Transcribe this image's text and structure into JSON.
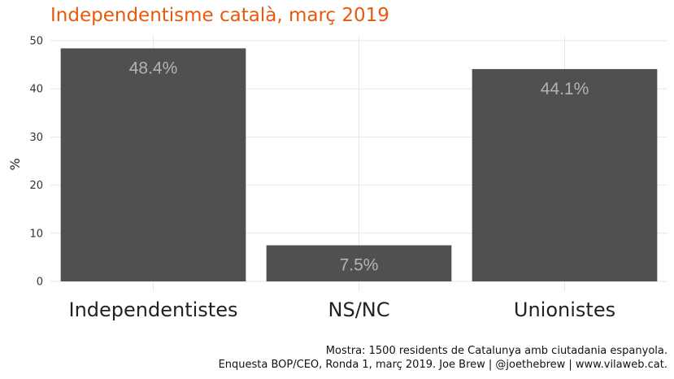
{
  "chart_data": {
    "type": "bar",
    "title": "Independentisme català, març 2019",
    "xlabel": "",
    "ylabel": "%",
    "ylim": [
      0,
      50
    ],
    "yticks": [
      0,
      10,
      20,
      30,
      40,
      50
    ],
    "categories": [
      "Independentistes",
      "NS/NC",
      "Unionistes"
    ],
    "values": [
      48.4,
      7.5,
      44.1
    ],
    "data_labels": [
      "48.4%",
      "7.5%",
      "44.1%"
    ],
    "grid": true,
    "bar_color": "#4d4d4d",
    "title_color": "#e8590c",
    "label_color": "#b3b3b3"
  },
  "caption": {
    "line1": "Mostra: 1500 residents de Catalunya amb ciutadania espanyola.",
    "line2": "Enquesta BOP/CEO, Ronda 1, març 2019. Joe Brew | @joethebrew | www.vilaweb.cat."
  }
}
